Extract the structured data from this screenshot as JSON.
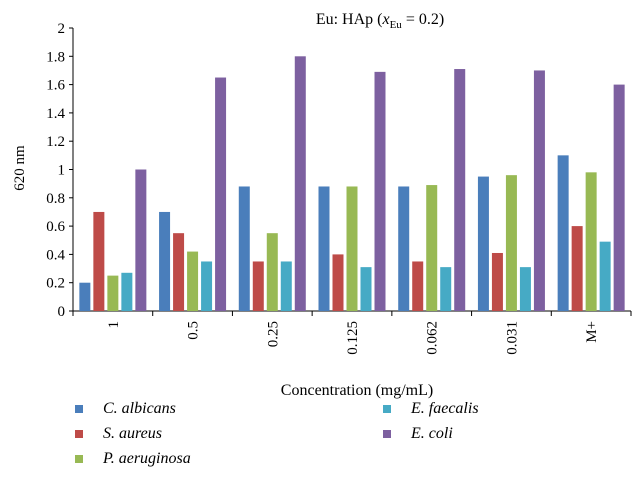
{
  "chart_data": {
    "type": "bar",
    "title_main": "Eu: HAp (",
    "title_var": "x",
    "title_sub": "Eu",
    "title_tail": " = 0.2)",
    "xlabel": "Concentration (mg/mL)",
    "ylabel": "620 nm",
    "ylim": [
      0,
      2
    ],
    "yticks": [
      "0",
      "0.2",
      "0.4",
      "0.6",
      "0.8",
      "1",
      "1.2",
      "1.4",
      "1.6",
      "1.8",
      "2"
    ],
    "categories": [
      "1",
      "0.5",
      "0.25",
      "0.125",
      "0.062",
      "0.031",
      "M+"
    ],
    "grid": false,
    "legend_position": "bottom",
    "series": [
      {
        "name": "C. albicans",
        "color": "#4a7ebb",
        "values": [
          0.2,
          0.7,
          0.88,
          0.88,
          0.88,
          0.95,
          1.1
        ]
      },
      {
        "name": "S. aureus",
        "color": "#be4b48",
        "values": [
          0.7,
          0.55,
          0.35,
          0.4,
          0.35,
          0.41,
          0.6
        ]
      },
      {
        "name": "P. aeruginosa",
        "color": "#98b954",
        "values": [
          0.25,
          0.42,
          0.55,
          0.88,
          0.89,
          0.96,
          0.98
        ]
      },
      {
        "name": "E. faecalis",
        "color": "#46aac5",
        "values": [
          0.27,
          0.35,
          0.35,
          0.31,
          0.31,
          0.31,
          0.49
        ]
      },
      {
        "name": "E. coli",
        "color": "#7d60a0",
        "values": [
          1.0,
          1.65,
          1.8,
          1.69,
          1.71,
          1.7,
          1.6
        ]
      }
    ]
  }
}
